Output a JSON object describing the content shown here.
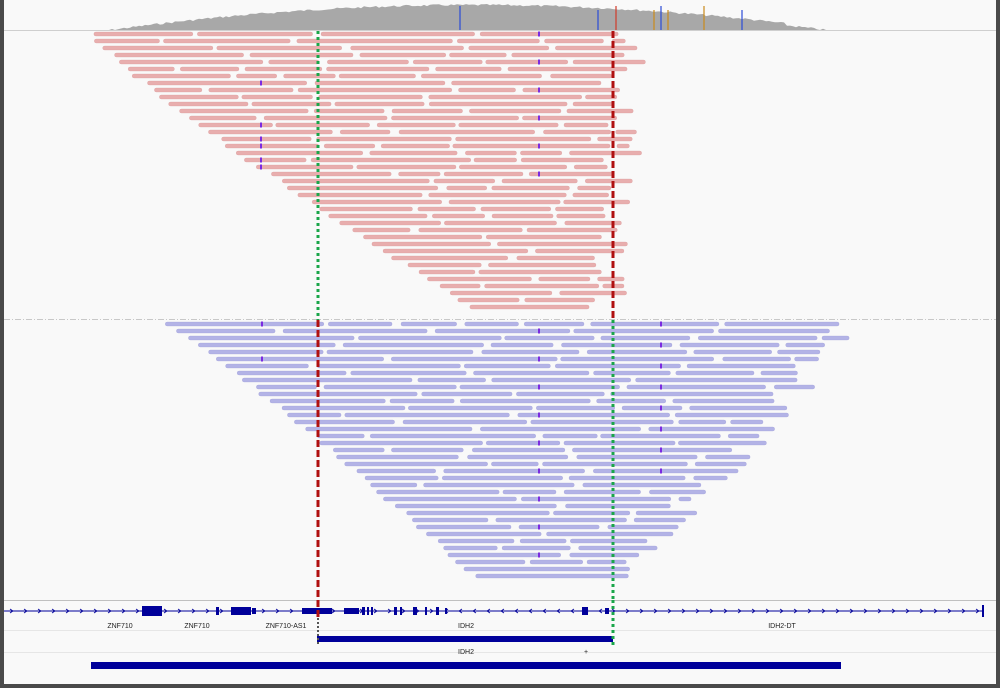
{
  "tracks": {
    "coverage": {
      "name": "coverage",
      "color": "#a8a8a8"
    },
    "upper_reads": {
      "name": "forward-strand reads",
      "color": "#e8aeae",
      "edge": "#d89a9a"
    },
    "lower_reads": {
      "name": "reverse-strand reads",
      "color": "#b3b3e6",
      "edge": "#9d9dd6"
    },
    "insertion_color": "#7b2ae0"
  },
  "markers": {
    "green_color": "#1aa64a",
    "red_color": "#b01010"
  },
  "genes": {
    "labels": [
      "ZNF710",
      "ZNF710",
      "ZNF710-AS1",
      "IDH2",
      "IDH2-DT"
    ],
    "feature_labels": [
      "IDH2"
    ],
    "star": "+",
    "color": "#00009a"
  }
}
